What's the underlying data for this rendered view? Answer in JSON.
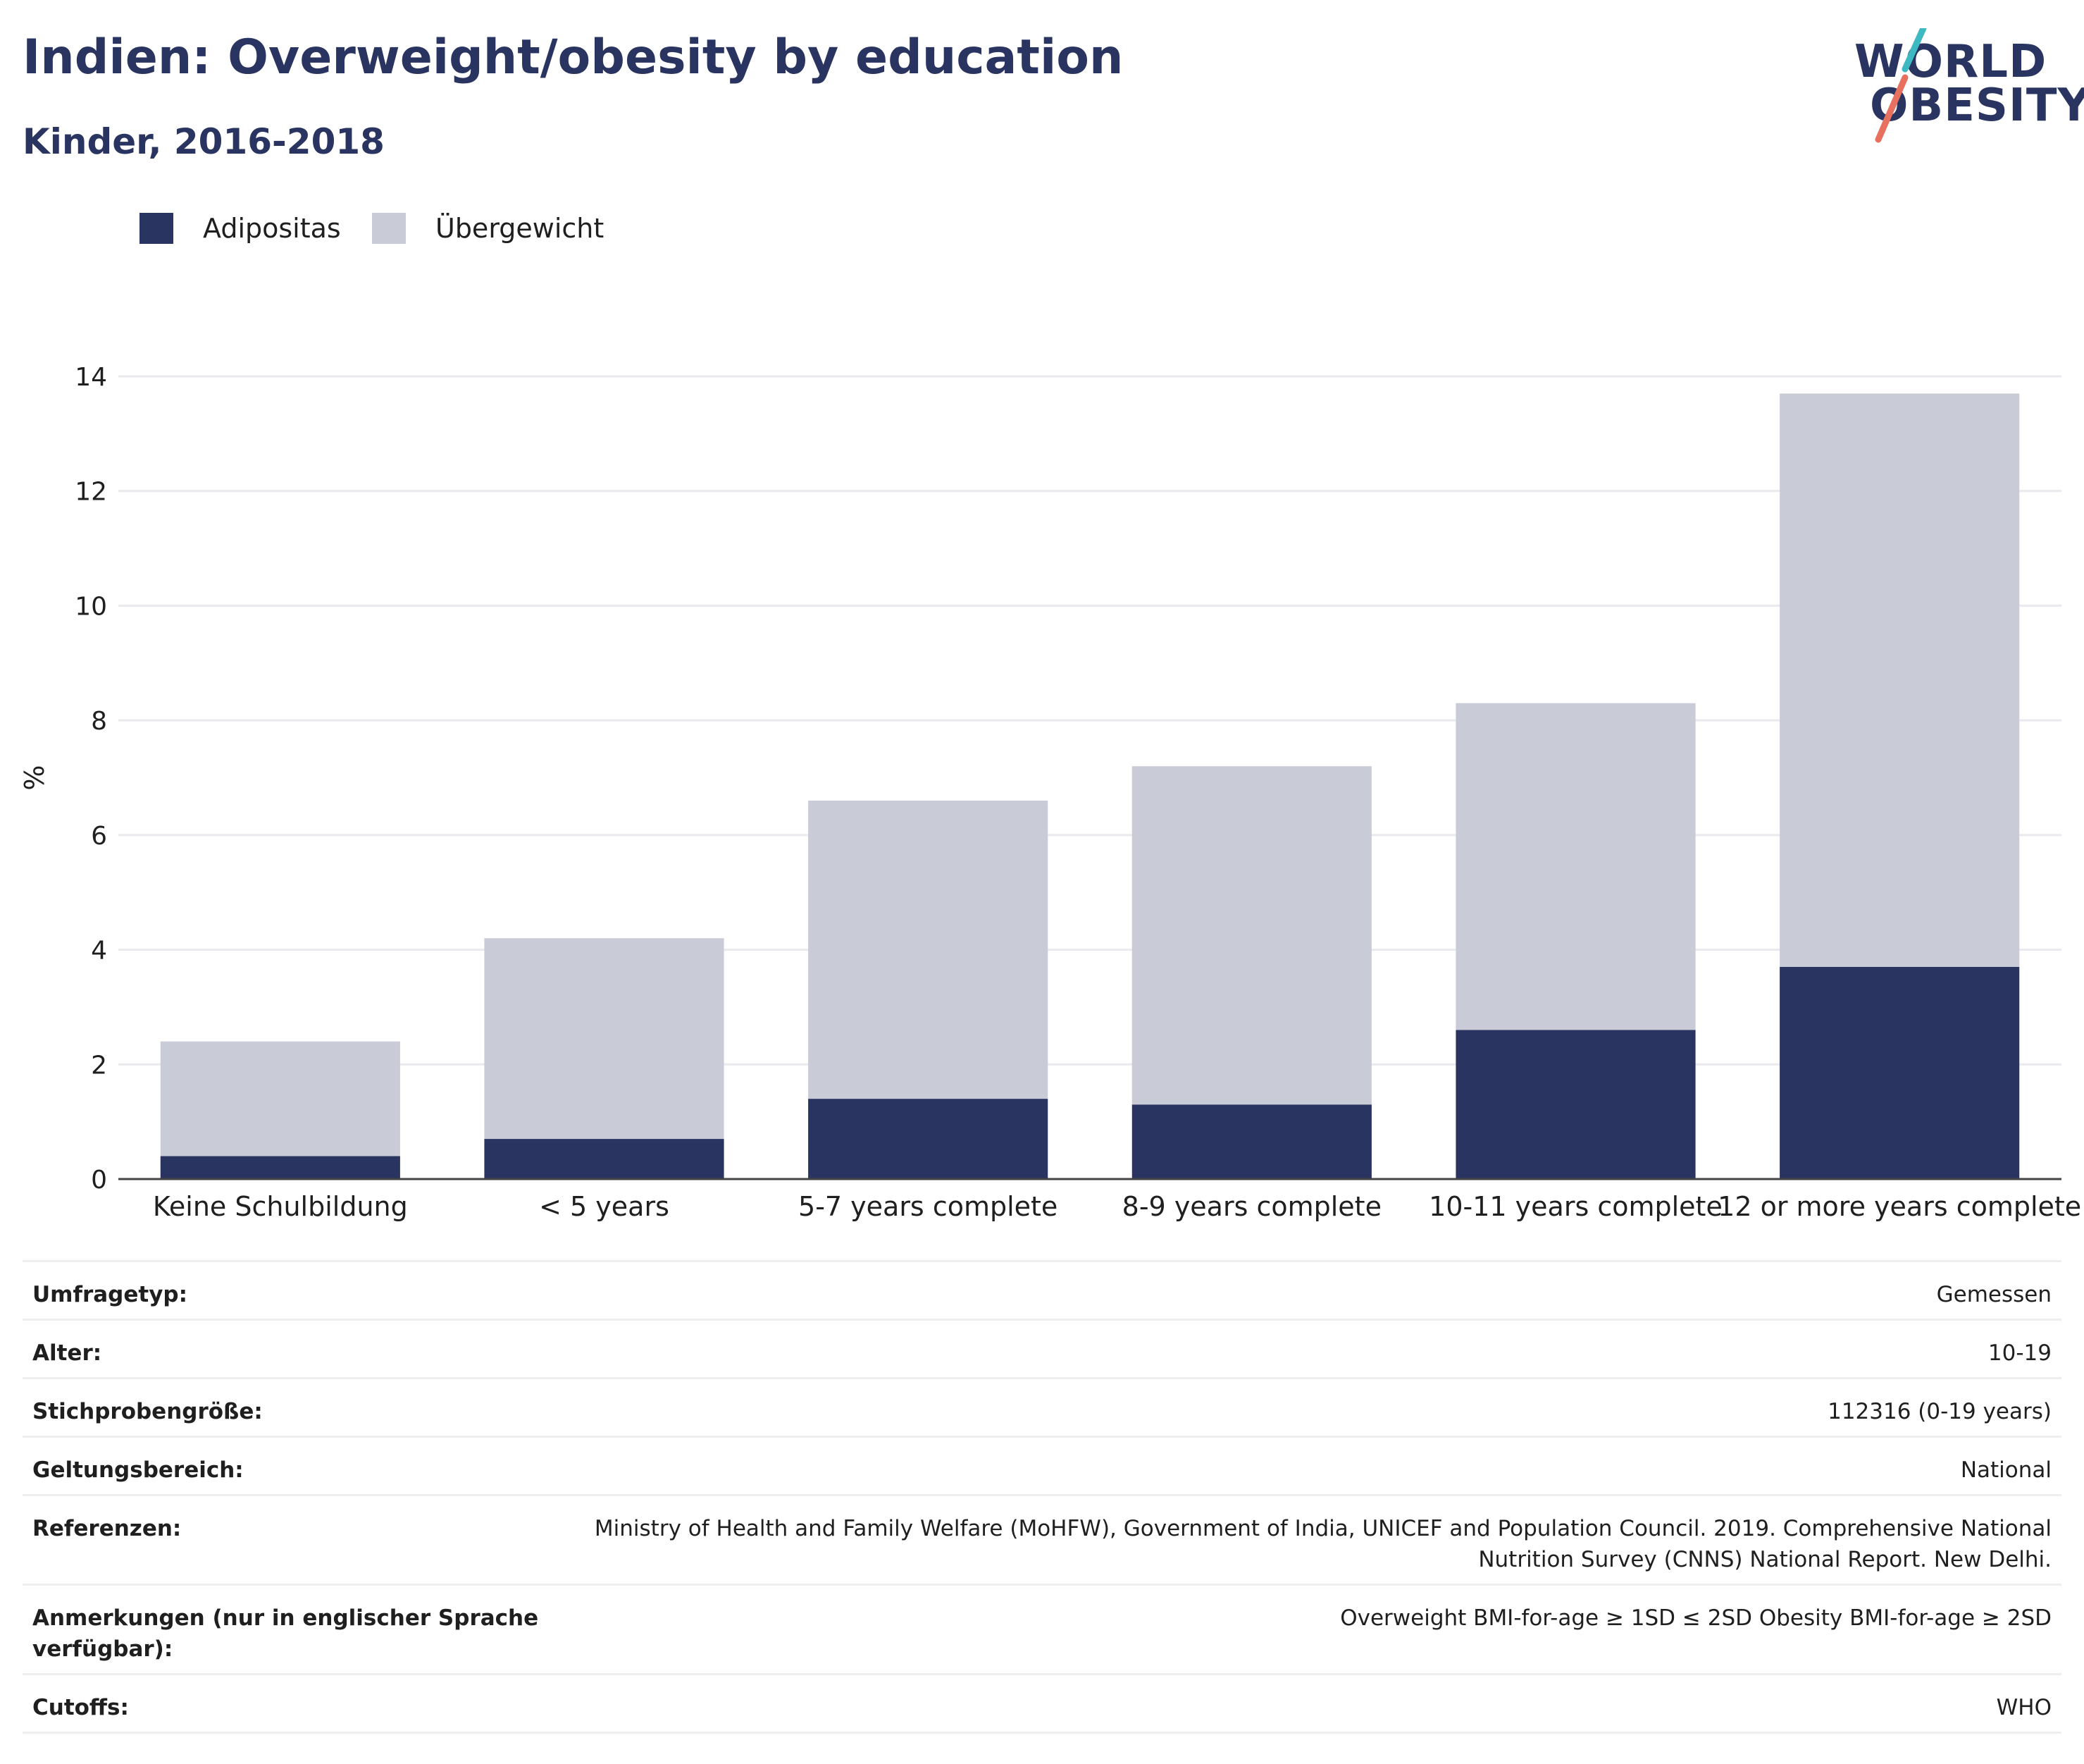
{
  "title": "Indien: Overweight/obesity by education",
  "subtitle": "Kinder, 2016-2018",
  "logo": {
    "line1": "WORLD",
    "line2": "OBESITY"
  },
  "colors": {
    "adipositas": "#2a3461",
    "uebergewicht": "#c9cbd6",
    "text": "#2a3461",
    "logo_slash_top": "#3fb9c1",
    "logo_slash_bottom": "#e8705f"
  },
  "legend": [
    {
      "label": "Adipositas",
      "color": "#2a3461"
    },
    {
      "label": "Übergewicht",
      "color": "#c9cbd6"
    }
  ],
  "chart_data": {
    "type": "bar",
    "stacked": true,
    "ylabel": "%",
    "ylim": [
      0,
      14
    ],
    "yticks": [
      0,
      2,
      4,
      6,
      8,
      10,
      12,
      14
    ],
    "grid": true,
    "legend_position": "top-left",
    "categories": [
      "Keine Schulbildung",
      "< 5 years",
      "5-7 years complete",
      "8-9 years complete",
      "10-11 years complete",
      "12 or more years complete"
    ],
    "series": [
      {
        "name": "Adipositas",
        "values": [
          0.4,
          0.7,
          1.4,
          1.3,
          2.6,
          3.7
        ]
      },
      {
        "name": "Übergewicht",
        "values": [
          2.0,
          3.5,
          5.2,
          5.9,
          5.7,
          10.0
        ]
      }
    ]
  },
  "meta": [
    {
      "label": "Umfragetyp:",
      "value": "Gemessen"
    },
    {
      "label": "Alter:",
      "value": "10-19"
    },
    {
      "label": "Stichprobengröße:",
      "value": "112316 (0-19 years)"
    },
    {
      "label": "Geltungsbereich:",
      "value": "National"
    },
    {
      "label": "Referenzen:",
      "value": "Ministry of Health and Family Welfare (MoHFW), Government of India, UNICEF and Population Council. 2019. Comprehensive National Nutrition Survey (CNNS) National Report. New Delhi."
    },
    {
      "label": "Anmerkungen (nur in englischer Sprache verfügbar):",
      "value": "Overweight BMI-for-age ≥ 1SD ≤ 2SD Obesity BMI-for-age ≥ 2SD"
    },
    {
      "label": "Cutoffs:",
      "value": "WHO"
    }
  ]
}
